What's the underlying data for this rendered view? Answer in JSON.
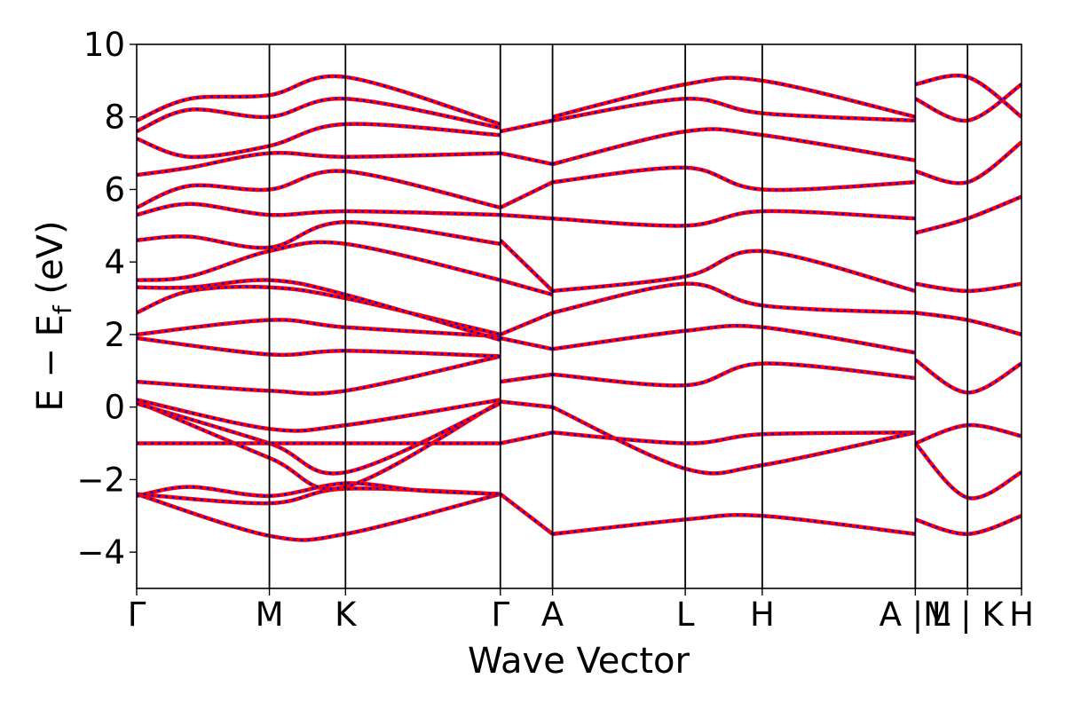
{
  "chart_data": {
    "type": "line",
    "xlabel": "Wave Vector",
    "ylabel_main": "E − E",
    "ylabel_sub": "f",
    "ylabel_unit": " (eV)",
    "ylim": [
      -5,
      10
    ],
    "yticks": [
      {
        "value": -4,
        "label": "−4"
      },
      {
        "value": -2,
        "label": "−2"
      },
      {
        "value": 0,
        "label": "0"
      },
      {
        "value": 2,
        "label": "2"
      },
      {
        "value": 4,
        "label": "4"
      },
      {
        "value": 6,
        "label": "6"
      },
      {
        "value": 8,
        "label": "8"
      },
      {
        "value": 10,
        "label": "10"
      }
    ],
    "xlim": [
      0,
      10
    ],
    "kpoints": [
      {
        "x": 0,
        "label": "Γ"
      },
      {
        "x": 1.5,
        "label": "M"
      },
      {
        "x": 2.36,
        "label": "K"
      },
      {
        "x": 4.11,
        "label": "Γ"
      },
      {
        "x": 4.7,
        "label": "A"
      },
      {
        "x": 6.2,
        "label": "L"
      },
      {
        "x": 7.07,
        "label": "H"
      },
      {
        "x": 8.8,
        "label": "A |M"
      },
      {
        "x": 9.39,
        "label": "L | K"
      },
      {
        "x": 10,
        "label": "H"
      }
    ],
    "series_colors": {
      "solid": "#ff0000",
      "dashed": "#0000ff"
    },
    "bands": [
      {
        "x": [
          0,
          1.5,
          2.36,
          4.11
        ],
        "y": [
          -2.4,
          -3.55,
          -3.5,
          -2.4
        ]
      },
      {
        "x": [
          0,
          1.5,
          2.36,
          4.11
        ],
        "y": [
          -2.4,
          -2.65,
          -2.25,
          -2.4
        ]
      },
      {
        "x": [
          0,
          0.6,
          1.5,
          2.36,
          3.2,
          4.11
        ],
        "y": [
          -2.45,
          -2.2,
          -2.45,
          -2.1,
          -2.3,
          -2.4
        ]
      },
      {
        "x": [
          0,
          1.5,
          2.36,
          4.11
        ],
        "y": [
          0.15,
          -1.4,
          -2.2,
          0.15
        ]
      },
      {
        "x": [
          0,
          1.5,
          2.36,
          4.11
        ],
        "y": [
          0.1,
          -1.0,
          -1.8,
          0.1
        ]
      },
      {
        "x": [
          0,
          1.5,
          2.36,
          4.11
        ],
        "y": [
          -1.0,
          -1.0,
          -1.0,
          -1.0
        ]
      },
      {
        "x": [
          0,
          1.5,
          2.36,
          4.11
        ],
        "y": [
          0.2,
          -0.6,
          -0.5,
          0.2
        ]
      },
      {
        "x": [
          0,
          1.5,
          2.36,
          4.11
        ],
        "y": [
          0.7,
          0.45,
          0.45,
          1.4
        ]
      },
      {
        "x": [
          0,
          1.5,
          2.36,
          4.11
        ],
        "y": [
          1.9,
          1.45,
          1.55,
          1.4
        ]
      },
      {
        "x": [
          0,
          1.5,
          2.36,
          4.11
        ],
        "y": [
          2.0,
          2.4,
          2.2,
          1.95
        ]
      },
      {
        "x": [
          0,
          0.6,
          1.5,
          2.36,
          4.11
        ],
        "y": [
          2.6,
          3.2,
          3.3,
          3.0,
          2.0
        ]
      },
      {
        "x": [
          0,
          0.6,
          1.5,
          2.36,
          4.11
        ],
        "y": [
          3.3,
          3.3,
          3.5,
          3.1,
          1.85
        ]
      },
      {
        "x": [
          0,
          0.6,
          1.5,
          2.36,
          4.11
        ],
        "y": [
          3.5,
          3.6,
          4.3,
          4.5,
          3.5
        ]
      },
      {
        "x": [
          0,
          0.6,
          1.5,
          2.36,
          4.11
        ],
        "y": [
          4.6,
          4.7,
          4.4,
          5.1,
          4.5
        ]
      },
      {
        "x": [
          0,
          0.6,
          1.5,
          2.36,
          4.11
        ],
        "y": [
          5.3,
          5.6,
          5.3,
          5.4,
          5.3
        ]
      },
      {
        "x": [
          0,
          0.6,
          1.5,
          2.36,
          4.11
        ],
        "y": [
          5.5,
          6.1,
          6.0,
          6.5,
          5.5
        ]
      },
      {
        "x": [
          0,
          0.6,
          1.5,
          2.36,
          4.11
        ],
        "y": [
          6.4,
          6.6,
          7.0,
          6.9,
          7.0
        ]
      },
      {
        "x": [
          0,
          0.6,
          1.5,
          2.36,
          4.11
        ],
        "y": [
          7.4,
          6.9,
          7.2,
          7.8,
          7.5
        ]
      },
      {
        "x": [
          0,
          0.6,
          1.5,
          2.36,
          4.11
        ],
        "y": [
          7.6,
          8.2,
          8.0,
          8.5,
          7.7
        ]
      },
      {
        "x": [
          0,
          0.6,
          1.5,
          2.36,
          4.11
        ],
        "y": [
          7.9,
          8.5,
          8.6,
          9.1,
          7.8
        ]
      },
      {
        "x": [
          4.11,
          4.7
        ],
        "y": [
          -2.4,
          -3.5
        ]
      },
      {
        "x": [
          4.11,
          4.7
        ],
        "y": [
          -1.0,
          -0.7
        ]
      },
      {
        "x": [
          4.11,
          4.7
        ],
        "y": [
          0.15,
          0.0
        ]
      },
      {
        "x": [
          4.11,
          4.7
        ],
        "y": [
          0.7,
          0.9
        ]
      },
      {
        "x": [
          4.11,
          4.7
        ],
        "y": [
          1.9,
          1.6
        ]
      },
      {
        "x": [
          4.11,
          4.7
        ],
        "y": [
          2.0,
          2.6
        ]
      },
      {
        "x": [
          4.11,
          4.7
        ],
        "y": [
          3.5,
          3.1
        ]
      },
      {
        "x": [
          4.11,
          4.7
        ],
        "y": [
          4.6,
          3.2
        ]
      },
      {
        "x": [
          4.11,
          4.7
        ],
        "y": [
          5.3,
          5.2
        ]
      },
      {
        "x": [
          4.11,
          4.7
        ],
        "y": [
          5.5,
          6.2
        ]
      },
      {
        "x": [
          4.11,
          4.7
        ],
        "y": [
          7.0,
          6.7
        ]
      },
      {
        "x": [
          4.11,
          4.7
        ],
        "y": [
          7.6,
          7.9
        ]
      },
      {
        "x": [
          4.7,
          6.2,
          7.07,
          8.8
        ],
        "y": [
          -3.5,
          -3.1,
          -3.0,
          -3.5
        ]
      },
      {
        "x": [
          4.7,
          6.2,
          7.07,
          8.8
        ],
        "y": [
          -0.7,
          -1.0,
          -0.75,
          -0.7
        ]
      },
      {
        "x": [
          4.7,
          6.2,
          7.07,
          8.8
        ],
        "y": [
          0.0,
          -1.7,
          -1.6,
          -0.7
        ]
      },
      {
        "x": [
          4.7,
          6.2,
          7.07,
          8.8
        ],
        "y": [
          0.9,
          0.6,
          1.2,
          0.8
        ]
      },
      {
        "x": [
          4.7,
          6.2,
          7.07,
          8.8
        ],
        "y": [
          1.6,
          2.1,
          2.2,
          1.5
        ]
      },
      {
        "x": [
          4.7,
          6.2,
          7.07,
          8.8
        ],
        "y": [
          2.6,
          3.4,
          2.8,
          2.6
        ]
      },
      {
        "x": [
          4.7,
          6.2,
          7.07,
          8.8
        ],
        "y": [
          3.2,
          3.6,
          4.3,
          3.2
        ]
      },
      {
        "x": [
          4.7,
          6.2,
          7.07,
          8.8
        ],
        "y": [
          5.2,
          5.0,
          5.4,
          5.2
        ]
      },
      {
        "x": [
          4.7,
          6.2,
          7.07,
          8.8
        ],
        "y": [
          6.2,
          6.6,
          6.0,
          6.2
        ]
      },
      {
        "x": [
          4.7,
          6.2,
          7.07,
          8.8
        ],
        "y": [
          6.7,
          7.6,
          7.5,
          6.8
        ]
      },
      {
        "x": [
          4.7,
          6.2,
          7.07,
          8.8
        ],
        "y": [
          7.9,
          8.5,
          8.1,
          7.9
        ]
      },
      {
        "x": [
          4.7,
          6.2,
          7.07,
          8.8
        ],
        "y": [
          8.0,
          8.9,
          9.0,
          8.0
        ]
      },
      {
        "x": [
          8.8,
          9.39,
          10
        ],
        "y": [
          -3.1,
          -3.5,
          -3.0
        ]
      },
      {
        "x": [
          8.8,
          9.39,
          10
        ],
        "y": [
          -1.0,
          -2.5,
          -1.8
        ]
      },
      {
        "x": [
          8.8,
          9.39,
          10
        ],
        "y": [
          -1.0,
          -0.5,
          -0.8
        ]
      },
      {
        "x": [
          8.8,
          9.39,
          10
        ],
        "y": [
          1.3,
          0.4,
          1.2
        ]
      },
      {
        "x": [
          8.8,
          9.39,
          10
        ],
        "y": [
          2.6,
          2.4,
          2.0
        ]
      },
      {
        "x": [
          8.8,
          9.39,
          10
        ],
        "y": [
          3.4,
          3.2,
          3.4
        ]
      },
      {
        "x": [
          8.8,
          9.39,
          10
        ],
        "y": [
          4.8,
          5.2,
          5.8
        ]
      },
      {
        "x": [
          8.8,
          9.39,
          10
        ],
        "y": [
          6.5,
          6.2,
          7.3
        ]
      },
      {
        "x": [
          8.8,
          9.39,
          10
        ],
        "y": [
          8.5,
          7.9,
          8.9
        ]
      },
      {
        "x": [
          8.8,
          9.39,
          10
        ],
        "y": [
          8.9,
          9.1,
          8.0
        ]
      }
    ]
  }
}
